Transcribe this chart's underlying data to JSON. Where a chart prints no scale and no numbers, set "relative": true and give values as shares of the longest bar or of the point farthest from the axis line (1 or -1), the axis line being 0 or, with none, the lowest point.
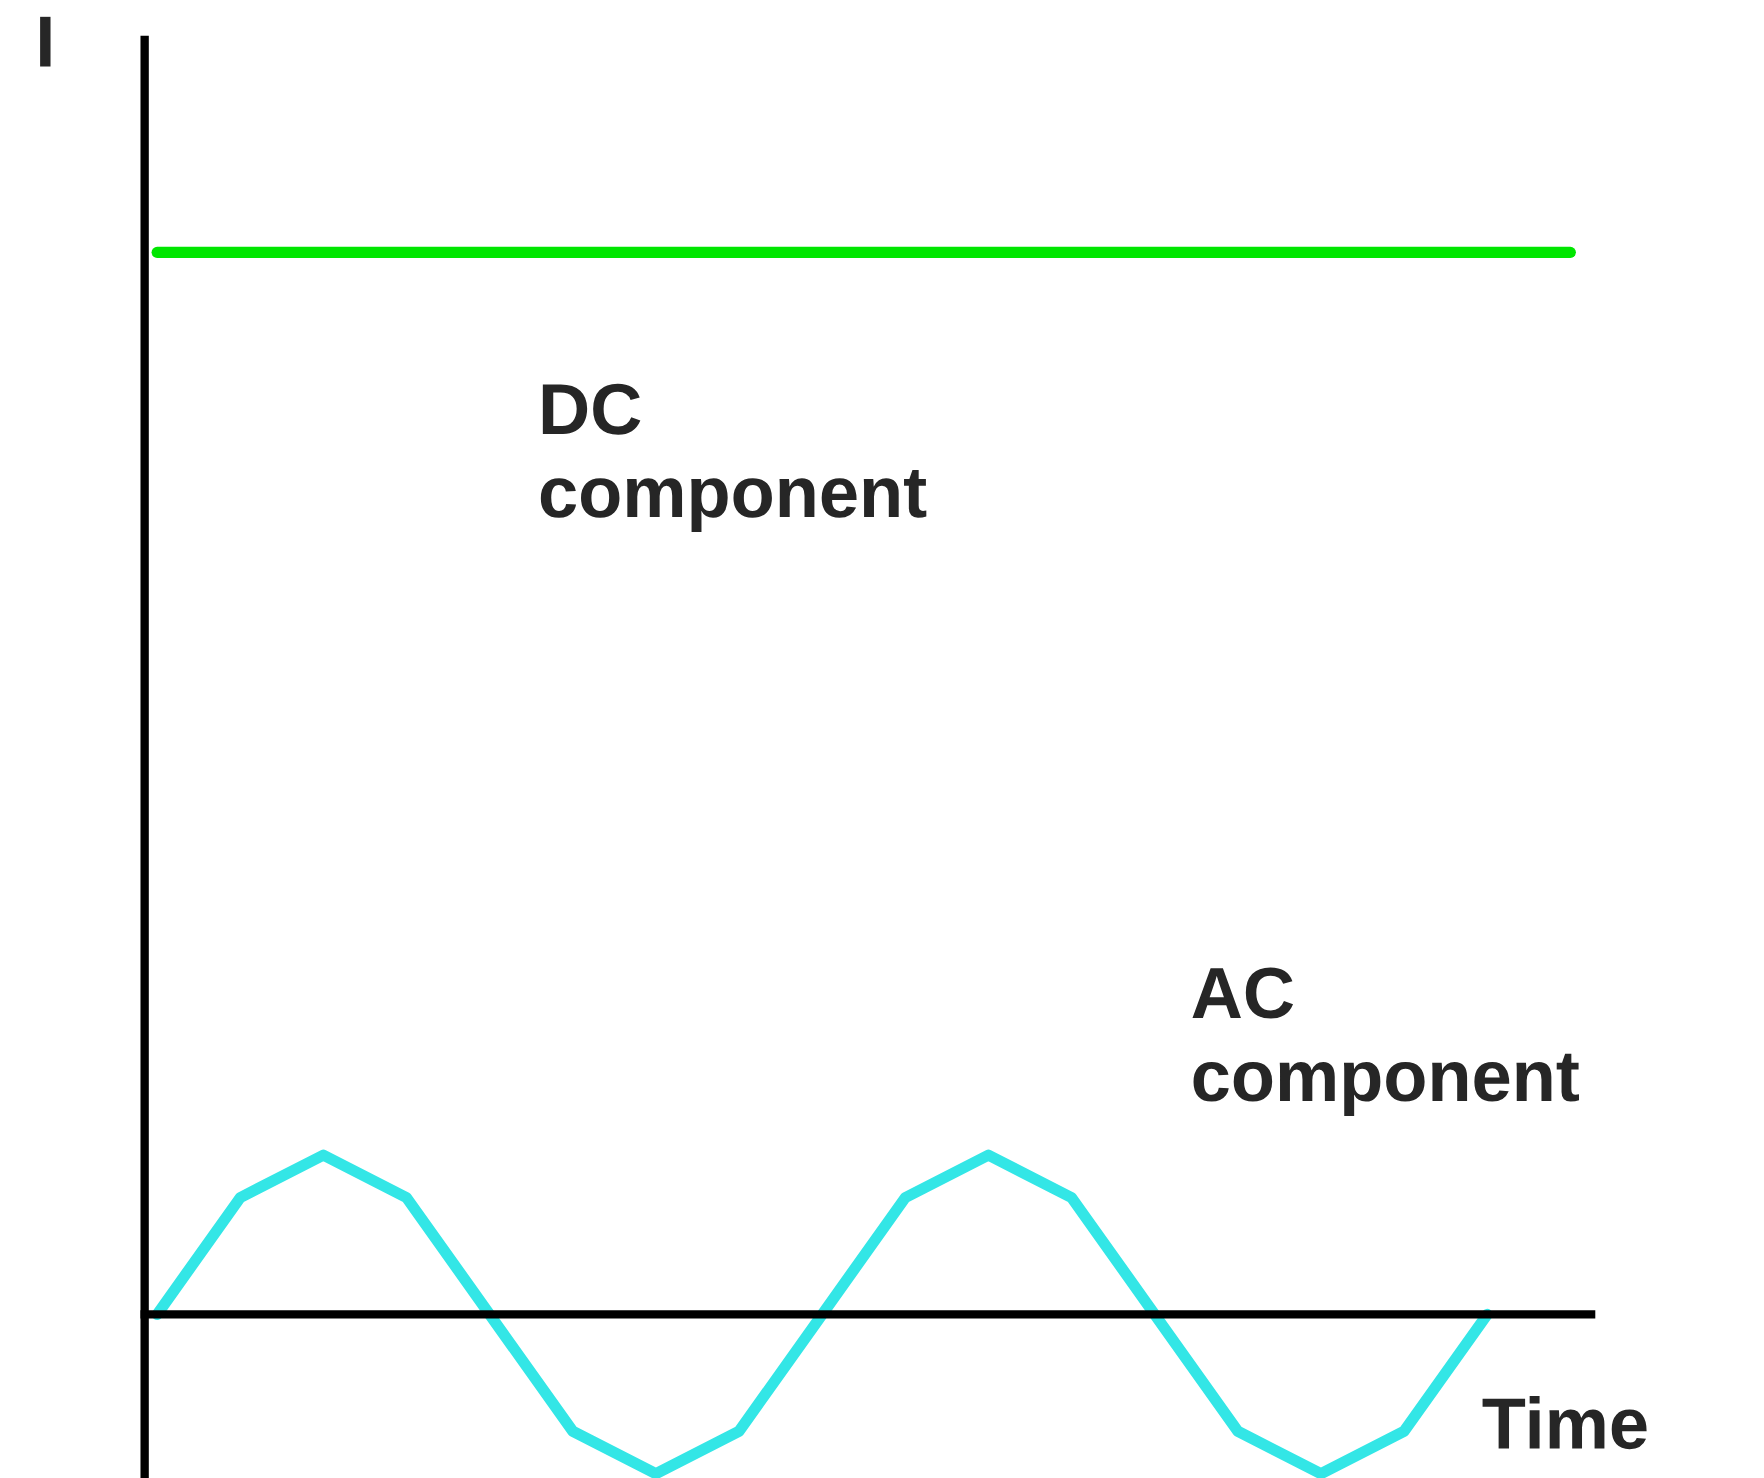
{
  "chart_data": {
    "type": "line",
    "relative": true,
    "xlabel": "Time",
    "ylabel": "I",
    "categories": [
      null,
      null,
      null,
      null,
      null,
      null,
      null,
      null,
      null,
      null,
      null,
      null,
      null,
      null,
      null,
      null,
      null,
      null
    ],
    "series": [
      {
        "color": "#00e600",
        "values": [
          1,
          1,
          1,
          1,
          1,
          1,
          1,
          1,
          1,
          1,
          1,
          1,
          1,
          1,
          1,
          1,
          1,
          1
        ]
      },
      {
        "color": "#33e6e6",
        "values": [
          0,
          0.11,
          0.15,
          0.11,
          0,
          -0.11,
          -0.15,
          -0.11,
          0,
          0.11,
          0.15,
          0.11,
          0,
          -0.11,
          -0.15,
          -0.11,
          0,
          null
        ]
      }
    ],
    "annotations": [
      "DC\ncomponent",
      "AC\ncomponent"
    ],
    "grid": false,
    "legend": false,
    "tick_labels": false,
    "marker": "none",
    "line_style": "solid"
  }
}
